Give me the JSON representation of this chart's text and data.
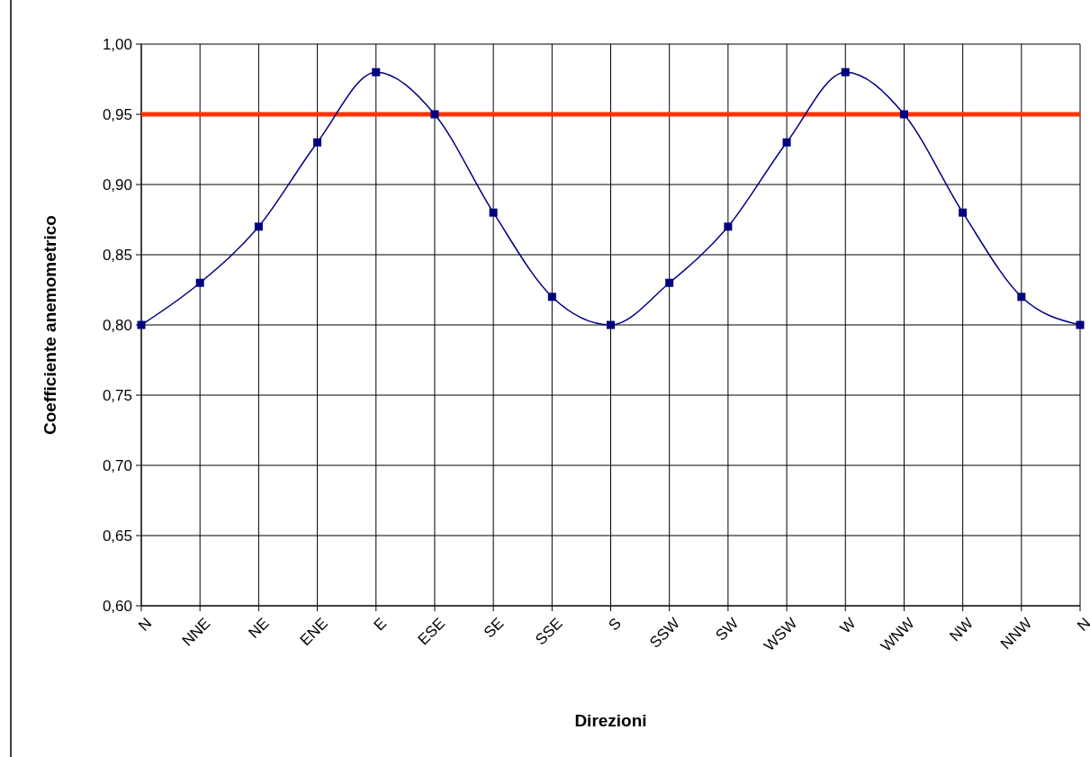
{
  "chart_data": {
    "type": "line",
    "xlabel": "Direzioni",
    "ylabel": "Coefficiente anemometrico",
    "categories": [
      "N",
      "NNE",
      "NE",
      "ENE",
      "E",
      "ESE",
      "SE",
      "SSE",
      "S",
      "SSW",
      "SW",
      "WSW",
      "W",
      "WNW",
      "NW",
      "NNW",
      "N"
    ],
    "series": [
      {
        "color": "#000080",
        "values": [
          0.8,
          0.83,
          0.87,
          0.93,
          0.98,
          0.95,
          0.88,
          0.82,
          0.8,
          0.83,
          0.87,
          0.93,
          0.98,
          0.95,
          0.88,
          0.82,
          0.8
        ]
      }
    ],
    "ylim": [
      0.6,
      1.0
    ],
    "yticks": [
      {
        "value": 0.6,
        "label": "0,60"
      },
      {
        "value": 0.65,
        "label": "0,65"
      },
      {
        "value": 0.7,
        "label": "0,70"
      },
      {
        "value": 0.75,
        "label": "0,75"
      },
      {
        "value": 0.8,
        "label": "0,80"
      },
      {
        "value": 0.85,
        "label": "0,85"
      },
      {
        "value": 0.9,
        "label": "0,90"
      },
      {
        "value": 0.95,
        "label": "0,95"
      },
      {
        "value": 1.0,
        "label": "1,00"
      }
    ],
    "ref_lines": [
      {
        "axis": "y",
        "value": 0.95,
        "color": "#ff3300"
      }
    ],
    "grid": true,
    "marker": "square"
  }
}
